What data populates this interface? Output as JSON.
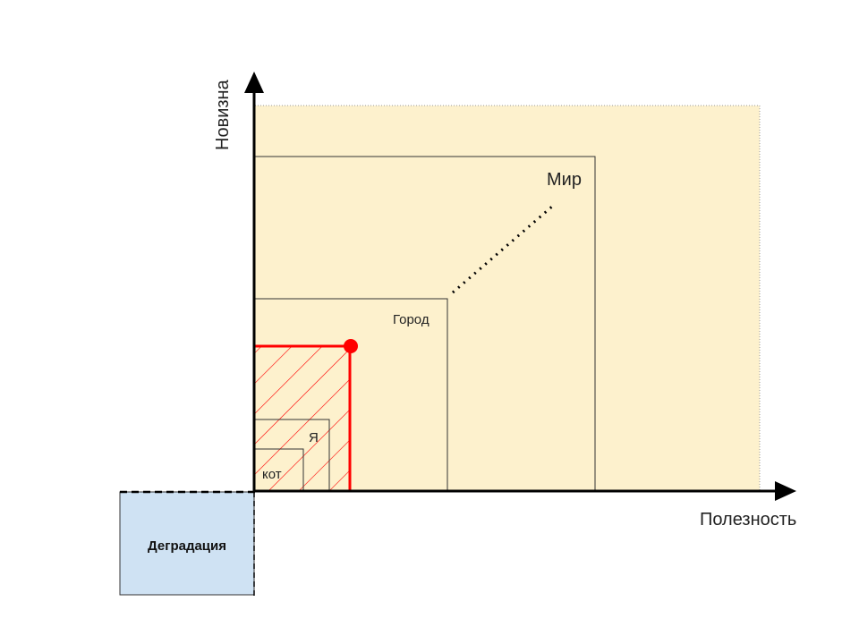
{
  "axes": {
    "x_label": "Полезность",
    "y_label": "Новизна"
  },
  "regions": {
    "world": "Мир",
    "city": "Город",
    "me": "Я",
    "cat": "кот",
    "degradation": "Деградация"
  },
  "colors": {
    "background_area": "#fdf1cd",
    "degradation_fill": "#cfe2f3",
    "highlight": "#ff0000",
    "axis": "#000000"
  }
}
